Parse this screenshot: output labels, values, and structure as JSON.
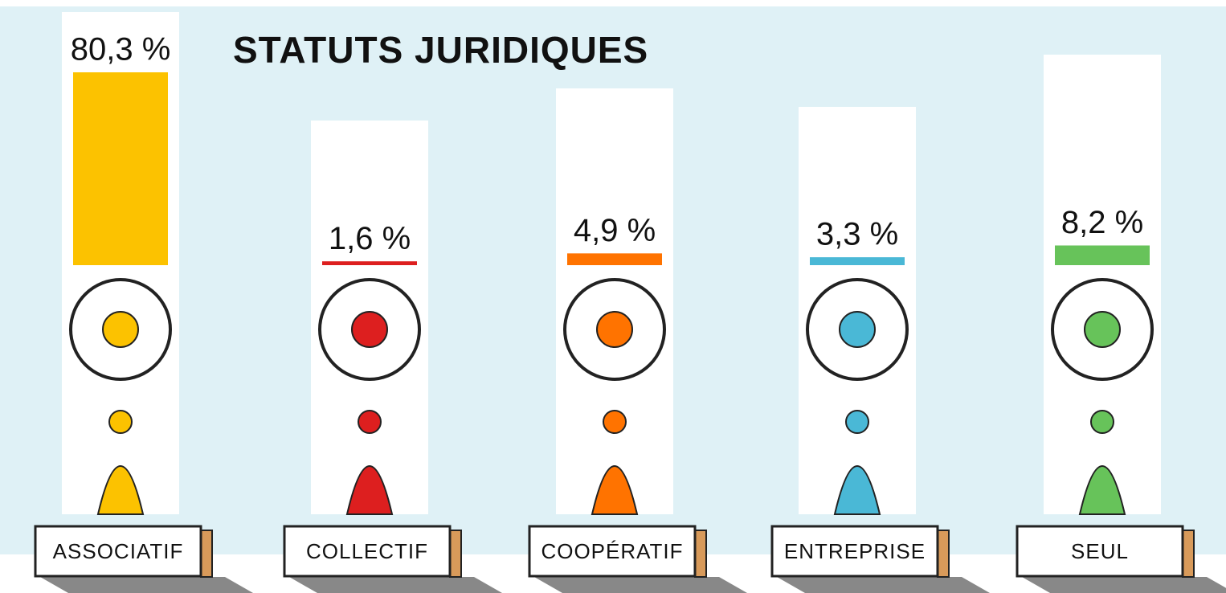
{
  "chart_data": {
    "type": "bar",
    "title": "STATUTS JURIDIQUES",
    "categories": [
      "ASSOCIATIF",
      "COLLECTIF",
      "COOPÉRATIF",
      "ENTREPRISE",
      "SEUL"
    ],
    "values": [
      80.3,
      1.6,
      4.9,
      3.3,
      8.2
    ],
    "value_labels": [
      "80,3 %",
      "1,6 %",
      "4,9 %",
      "3,3 %",
      "8,2 %"
    ],
    "colors": [
      "#fcc200",
      "#dd1f1f",
      "#ff7300",
      "#4ab8d6",
      "#67c35a"
    ]
  }
}
